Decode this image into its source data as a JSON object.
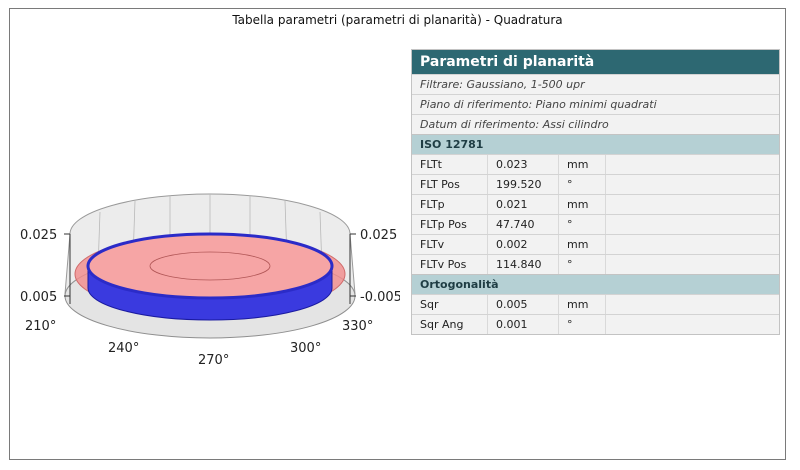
{
  "title": "Tabella parametri (parametri di planarità) - Quadratura",
  "plot": {
    "left_axis_labels": [
      "0.025",
      "0.005"
    ],
    "right_axis_labels": [
      "0.025",
      "-0.005"
    ],
    "angle_labels": [
      "210°",
      "240°",
      "270°",
      "300°",
      "330°"
    ]
  },
  "panel": {
    "header": "Parametri di planarità",
    "meta": [
      "Filtrare: Gaussiano, 1-500 upr",
      "Piano di riferimento: Piano minimi quadrati",
      "Datum di riferimento: Assi cilindro"
    ],
    "sections": [
      {
        "title": "ISO 12781",
        "rows": [
          {
            "name": "FLTt",
            "value": "0.023",
            "unit": "mm"
          },
          {
            "name": "FLT Pos",
            "value": "199.520",
            "unit": "°"
          },
          {
            "name": "FLTp",
            "value": "0.021",
            "unit": "mm"
          },
          {
            "name": "FLTp Pos",
            "value": "47.740",
            "unit": "°"
          },
          {
            "name": "FLTv",
            "value": "0.002",
            "unit": "mm"
          },
          {
            "name": "FLTv Pos",
            "value": "114.840",
            "unit": "°"
          }
        ]
      },
      {
        "title": "Ortogonalità",
        "rows": [
          {
            "name": "Sqr",
            "value": "0.005",
            "unit": "mm"
          },
          {
            "name": "Sqr Ang",
            "value": "0.001",
            "unit": "°"
          }
        ]
      }
    ]
  },
  "colors": {
    "header_bg": "#2d6872",
    "section_bg": "#b5d0d4",
    "row_bg": "#f2f2f2",
    "profile_band": "#3a3adf",
    "reference_plane": "#f28b8b"
  }
}
